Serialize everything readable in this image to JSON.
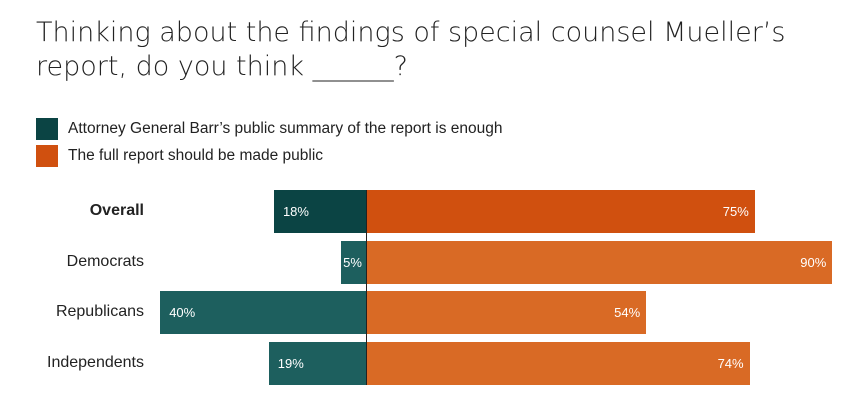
{
  "chart_data": {
    "type": "bar",
    "orientation": "horizontal-diverging",
    "title": "Thinking about the findings of special counsel Mueller’s report, do you think ______?",
    "categories": [
      "Overall",
      "Democrats",
      "Republicans",
      "Independents"
    ],
    "series": [
      {
        "name": "Attorney General Barr’s public summary of the report is enough",
        "values": [
          18,
          5,
          40,
          19
        ],
        "labels": [
          "18%",
          "5%",
          "40%",
          "19%"
        ],
        "color": "#1d5f5e",
        "highlight_color": "#0b4444"
      },
      {
        "name": "The full report should be made public",
        "values": [
          75,
          90,
          54,
          74
        ],
        "labels": [
          "75%",
          "90%",
          "54%",
          "74%"
        ],
        "color": "#d96a25",
        "highlight_color": "#d0500f"
      }
    ],
    "legend": "top-left"
  }
}
